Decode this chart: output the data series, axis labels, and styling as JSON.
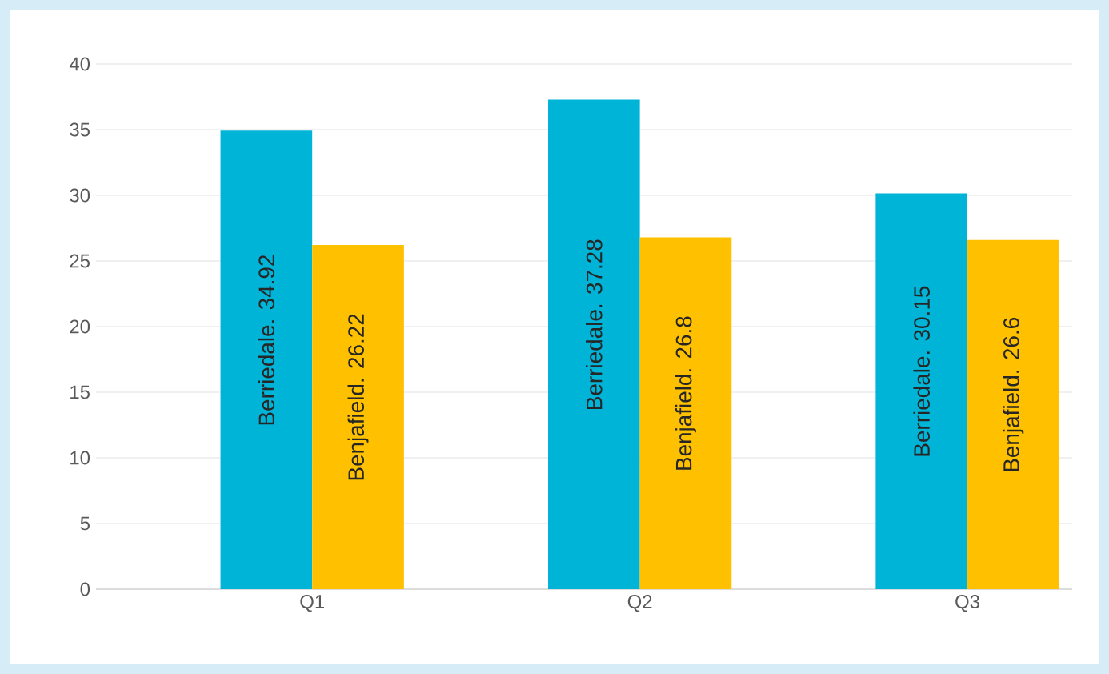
{
  "chart_data": {
    "type": "bar",
    "categories": [
      "Q1",
      "Q2",
      "Q3"
    ],
    "series": [
      {
        "color": "#00b4d8",
        "values": [
          34.92,
          37.28,
          30.15
        ],
        "value_labels": [
          "Berriedale. 34.92",
          "Berriedale. 37.28",
          "Berriedale. 30.15"
        ]
      },
      {
        "color": "#ffc000",
        "values": [
          26.22,
          26.8,
          26.6
        ],
        "value_labels": [
          "Benjafield. 26.22",
          "Benjafield. 26.8",
          "Benjafield. 26.6"
        ]
      }
    ],
    "ylim": [
      0,
      40
    ],
    "yticks": [
      0,
      5,
      10,
      15,
      20,
      25,
      30,
      35,
      40
    ],
    "grid": "y"
  }
}
